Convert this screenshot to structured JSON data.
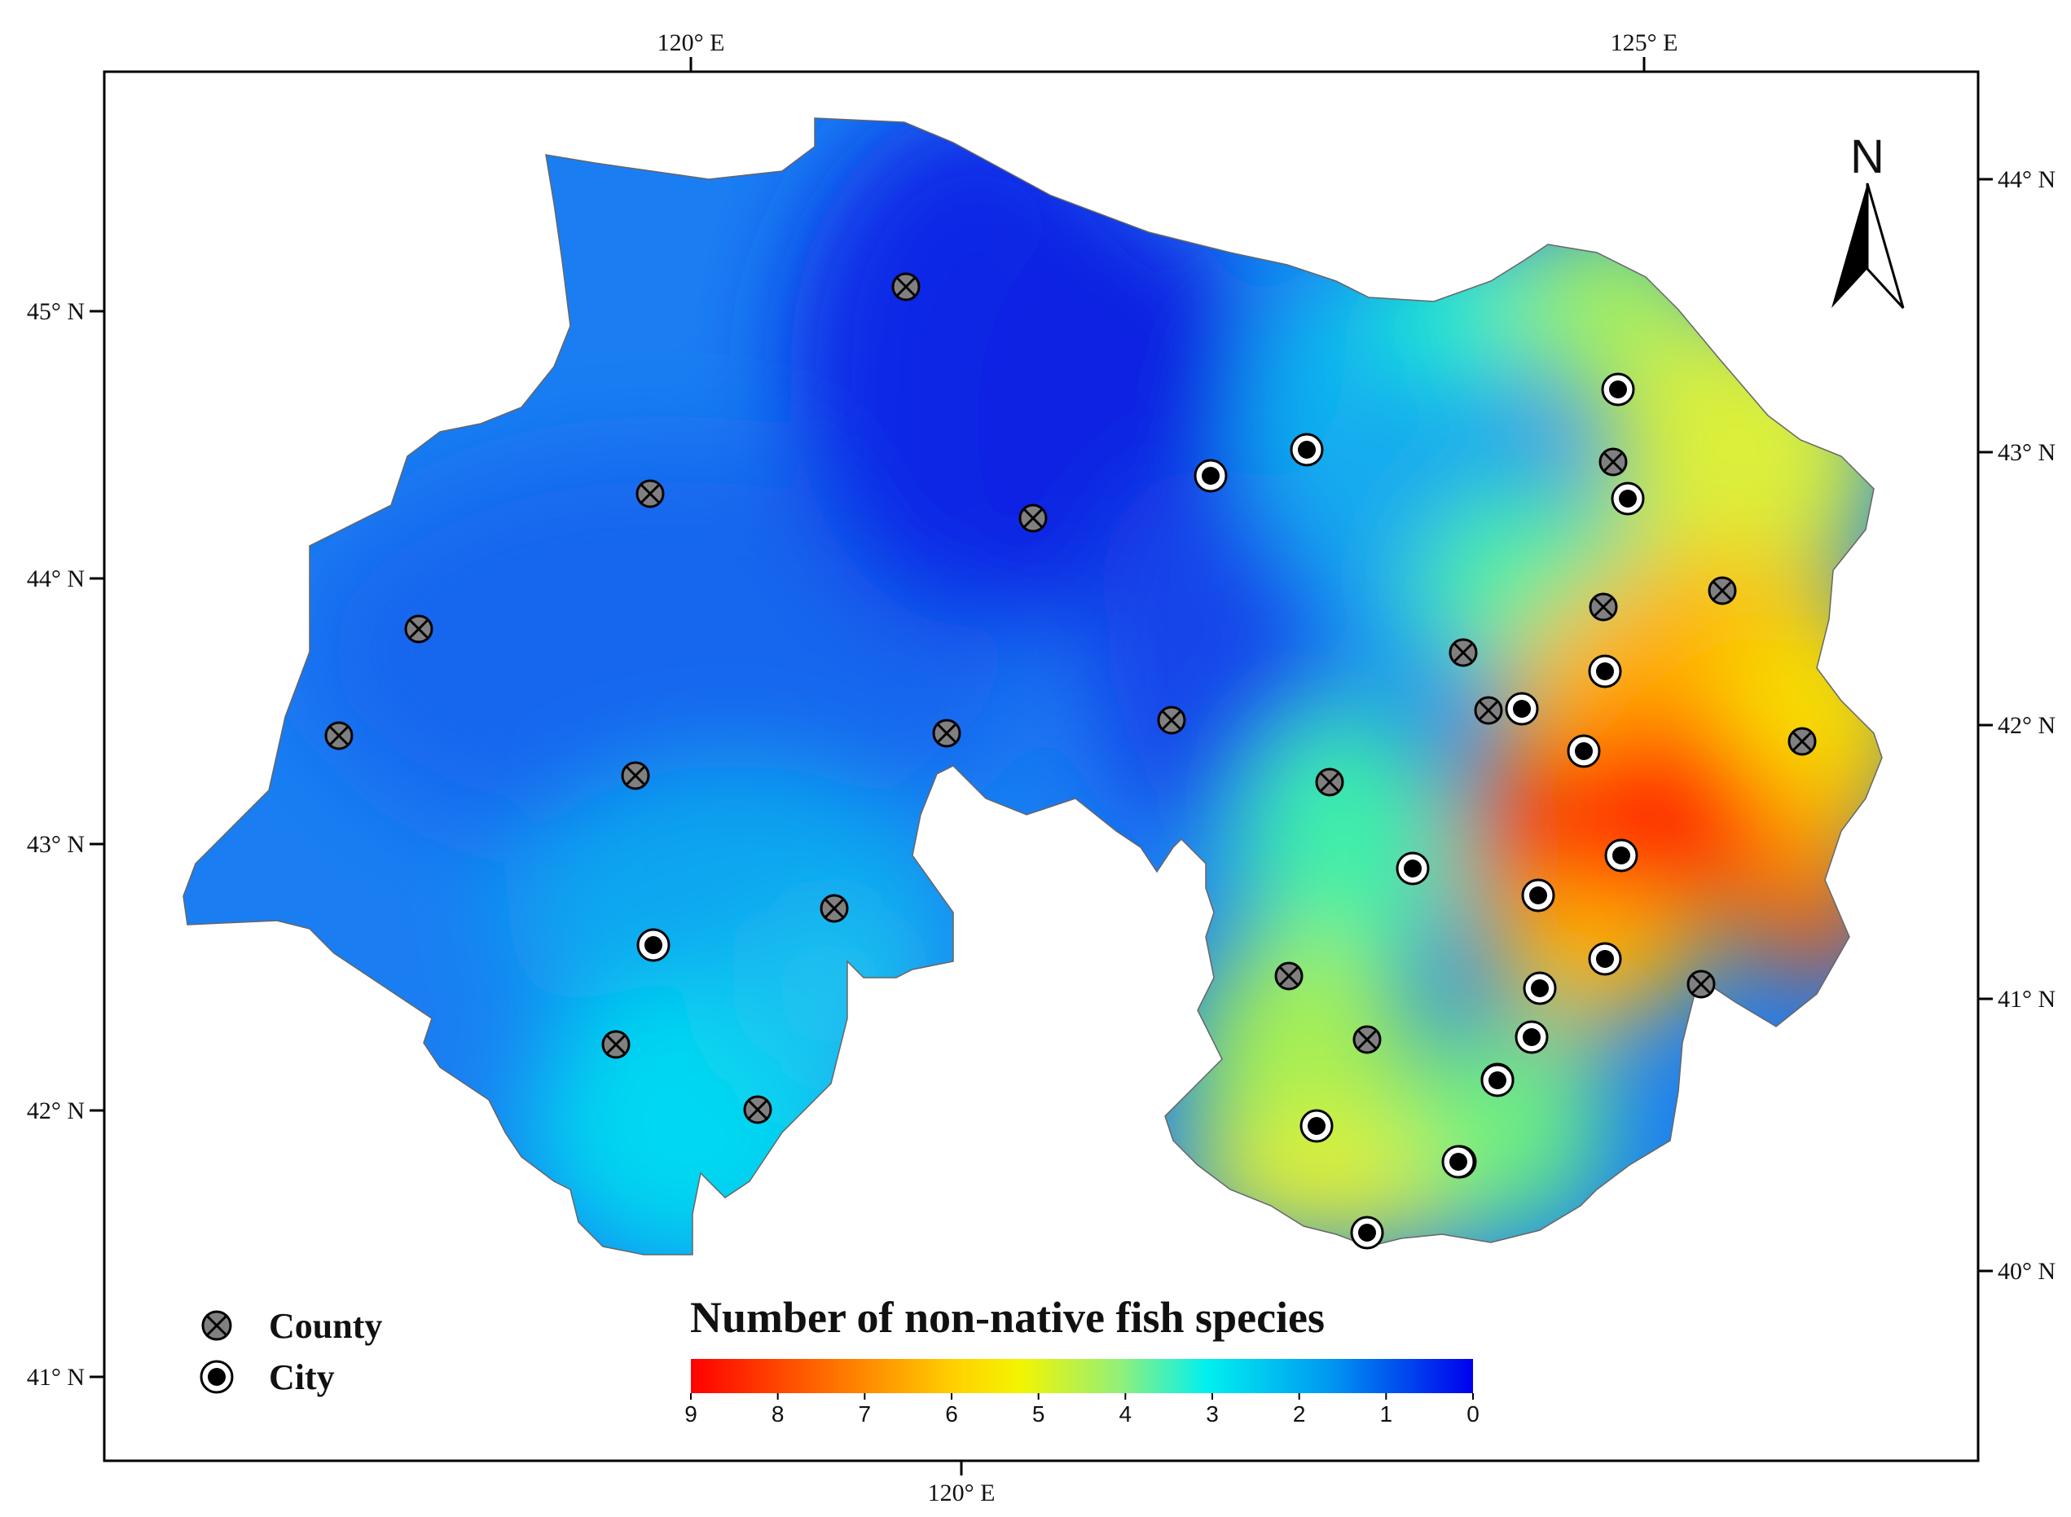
{
  "axes": {
    "top": [
      "120° E",
      "125° E"
    ],
    "bottom": [
      "120° E"
    ],
    "left": [
      "45° N",
      "44° N",
      "43° N",
      "42° N",
      "41° N"
    ],
    "right": [
      "44° N",
      "43° N",
      "42° N",
      "41° N",
      "40° N"
    ]
  },
  "north_arrow": {
    "label": "N"
  },
  "legend": {
    "county": "County",
    "city": "City"
  },
  "colorbar": {
    "title": "Number of non-native fish species",
    "ticks": [
      "9",
      "8",
      "7",
      "6",
      "5",
      "4",
      "3",
      "2",
      "1",
      "0"
    ],
    "colors": [
      "#ff0000",
      "#ff5a00",
      "#ffae00",
      "#f4f400",
      "#c2f23a",
      "#4cf0a0",
      "#00f0f0",
      "#00b2f2",
      "#005cf0",
      "#0000ee"
    ]
  },
  "chart_data": {
    "type": "heatmap",
    "title": "Number of non-native fish species",
    "value_range": [
      0,
      9
    ],
    "legend_placement": "bottom-left",
    "markers": [
      {
        "type": "county",
        "value": 0
      },
      {
        "type": "county",
        "value": 2
      },
      {
        "type": "county",
        "value": 1
      },
      {
        "type": "county",
        "value": 1
      },
      {
        "type": "county",
        "value": 1
      },
      {
        "type": "county",
        "value": 2
      },
      {
        "type": "county",
        "value": 1
      },
      {
        "type": "county",
        "value": 1
      },
      {
        "type": "county",
        "value": 2
      },
      {
        "type": "county",
        "value": 2
      },
      {
        "type": "county",
        "value": 2
      },
      {
        "type": "county",
        "value": 4
      },
      {
        "type": "county",
        "value": 4
      },
      {
        "type": "county",
        "value": 5
      },
      {
        "type": "county",
        "value": 2
      },
      {
        "type": "county",
        "value": 4
      },
      {
        "type": "county",
        "value": 4
      },
      {
        "type": "county",
        "value": 5
      },
      {
        "type": "county",
        "value": 5
      },
      {
        "type": "county",
        "value": 5
      },
      {
        "type": "county",
        "value": 7
      },
      {
        "type": "city",
        "value": 1
      },
      {
        "type": "city",
        "value": 2
      },
      {
        "type": "city",
        "value": 2
      },
      {
        "type": "city",
        "value": 5
      },
      {
        "type": "city",
        "value": 5
      },
      {
        "type": "city",
        "value": 5
      },
      {
        "type": "city",
        "value": 7
      },
      {
        "type": "city",
        "value": 5
      },
      {
        "type": "city",
        "value": 7
      },
      {
        "type": "city",
        "value": 9
      },
      {
        "type": "city",
        "value": 6
      },
      {
        "type": "city",
        "value": 8
      },
      {
        "type": "city",
        "value": 8
      },
      {
        "type": "city",
        "value": 8
      },
      {
        "type": "city",
        "value": 7
      },
      {
        "type": "city",
        "value": 6
      },
      {
        "type": "city",
        "value": 5
      },
      {
        "type": "city",
        "value": 5
      },
      {
        "type": "city",
        "value": 6
      },
      {
        "type": "city",
        "value": 5
      }
    ]
  }
}
